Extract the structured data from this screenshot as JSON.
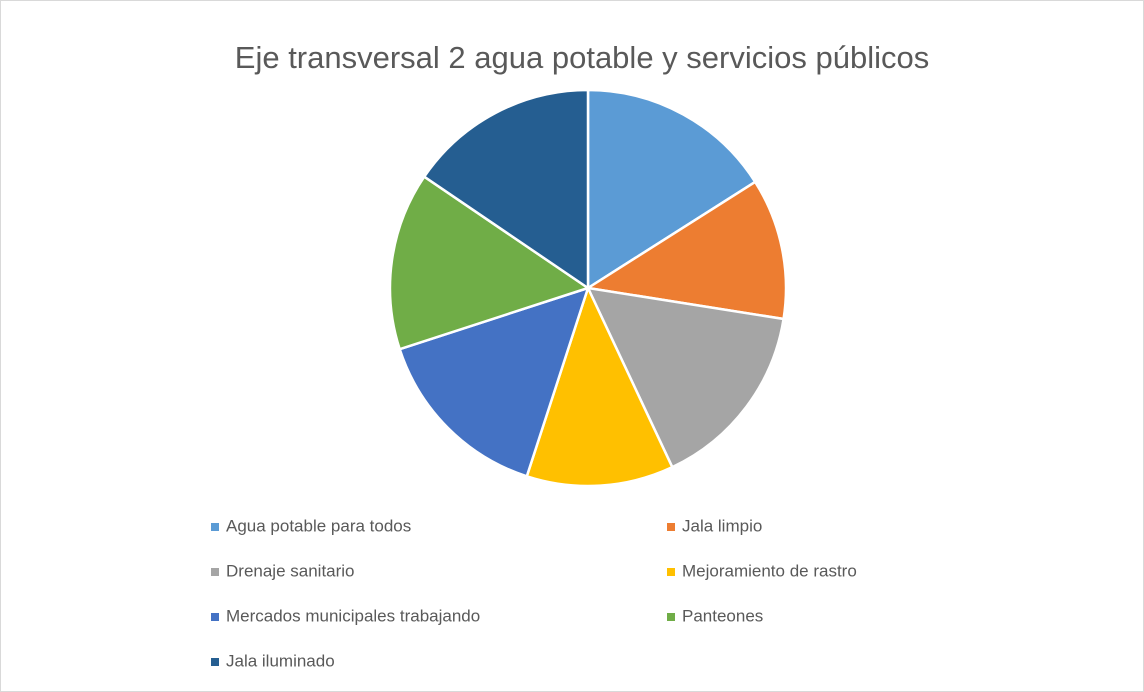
{
  "chart_data": {
    "type": "pie",
    "title": "Eje transversal 2 agua potable y servicios públicos",
    "categories": [
      "Agua potable para todos",
      "Jala limpio",
      "Drenaje sanitario",
      "Mejoramiento de rastro",
      "Mercados municipales trabajando",
      "Panteones",
      "Jala iluminado"
    ],
    "values": [
      16,
      11.5,
      15.5,
      12,
      15,
      14.5,
      15.5
    ],
    "colors": [
      "#5b9bd5",
      "#ed7d31",
      "#a5a5a5",
      "#ffc000",
      "#4472c4",
      "#70ad47",
      "#255e91"
    ],
    "legend": "bottom"
  }
}
